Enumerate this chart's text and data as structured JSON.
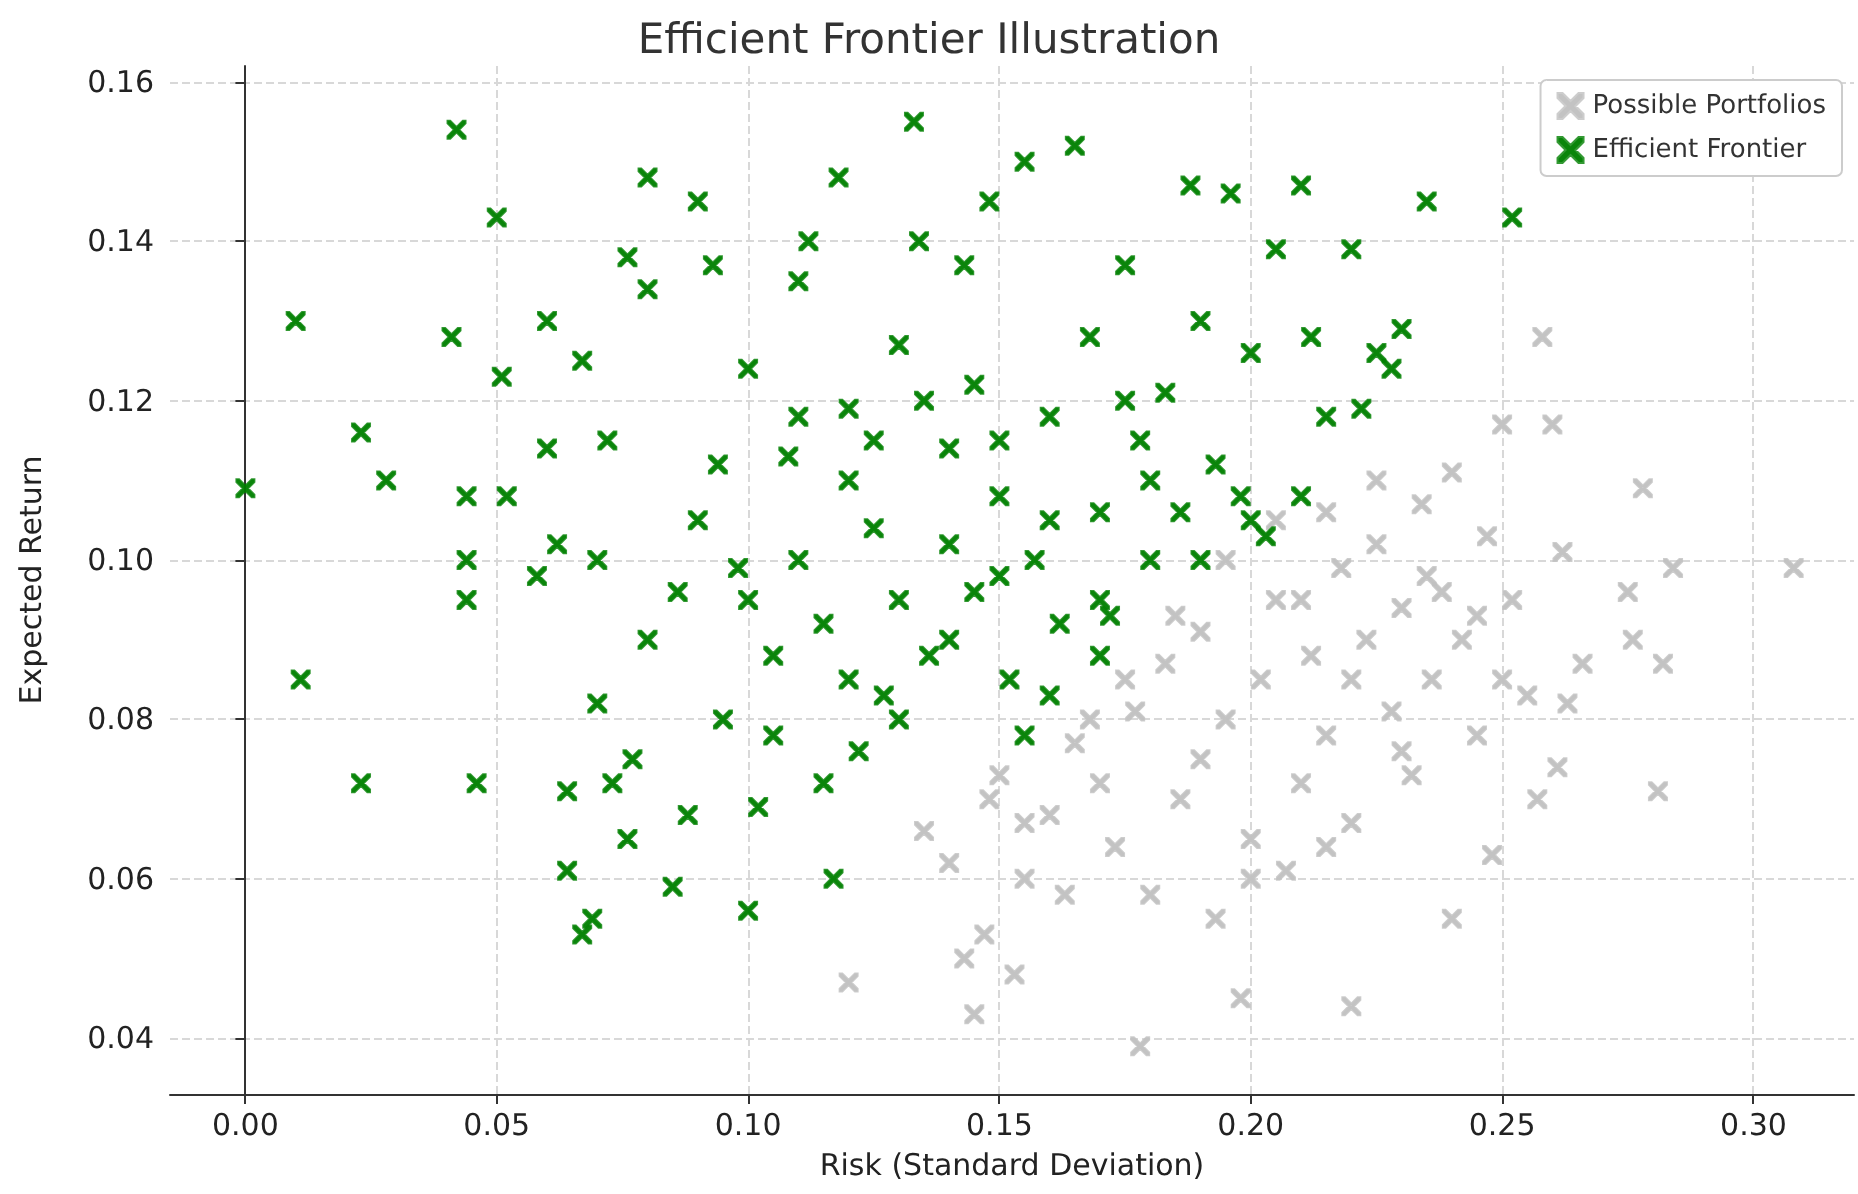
{
  "chart_data": {
    "type": "scatter",
    "title": "Efficient Frontier Illustration",
    "xlabel": "Risk (Standard Deviation)",
    "ylabel": "Expected Return",
    "xlim": [
      -0.015,
      0.32
    ],
    "xticks": [
      {
        "value": 0,
        "label": "0.00"
      },
      0.05,
      {
        "value": 0.1,
        "label": "0.10"
      },
      0.15,
      {
        "value": 0.2,
        "label": "0.20"
      },
      0.25,
      {
        "value": 0.3,
        "label": "0.30"
      }
    ],
    "ylim": [
      0.033,
      0.162
    ],
    "yticks": [
      0.04,
      0.06,
      0.08,
      {
        "value": 0.1,
        "label": "0.10"
      },
      0.12,
      0.14,
      0.16
    ],
    "grid": true,
    "legend": "top right",
    "marker": "cross",
    "series": [
      {
        "name": "Possible Portfolios",
        "color": "#c0c0c0",
        "x": [
          0.12,
          0.135,
          0.14,
          0.143,
          0.145,
          0.147,
          0.15,
          0.153,
          0.155,
          0.16,
          0.163,
          0.165,
          0.17,
          0.173,
          0.177,
          0.178,
          0.18,
          0.183,
          0.186,
          0.19,
          0.193,
          0.195,
          0.198,
          0.2,
          0.202,
          0.205,
          0.207,
          0.21,
          0.212,
          0.215,
          0.218,
          0.22,
          0.22,
          0.223,
          0.225,
          0.228,
          0.23,
          0.232,
          0.234,
          0.236,
          0.238,
          0.24,
          0.24,
          0.242,
          0.245,
          0.247,
          0.248,
          0.25,
          0.252,
          0.255,
          0.257,
          0.258,
          0.26,
          0.261,
          0.262,
          0.263,
          0.266,
          0.275,
          0.276,
          0.278,
          0.281,
          0.282,
          0.284,
          0.308,
          0.185,
          0.195,
          0.205,
          0.215,
          0.175,
          0.168,
          0.19,
          0.2,
          0.21,
          0.225,
          0.235,
          0.245,
          0.25,
          0.23,
          0.22,
          0.215,
          0.155,
          0.148
        ],
        "values": [
          0.047,
          0.066,
          0.062,
          0.05,
          0.043,
          0.053,
          0.073,
          0.048,
          0.06,
          0.068,
          0.058,
          0.077,
          0.072,
          0.064,
          0.081,
          0.039,
          0.058,
          0.087,
          0.07,
          0.091,
          0.055,
          0.08,
          0.045,
          0.065,
          0.085,
          0.095,
          0.061,
          0.072,
          0.088,
          0.078,
          0.099,
          0.044,
          0.067,
          0.09,
          0.102,
          0.081,
          0.094,
          0.073,
          0.107,
          0.085,
          0.096,
          0.055,
          0.111,
          0.09,
          0.078,
          0.103,
          0.063,
          0.117,
          0.095,
          0.083,
          0.07,
          0.128,
          0.117,
          0.074,
          0.101,
          0.082,
          0.087,
          0.096,
          0.09,
          0.109,
          0.071,
          0.087,
          0.099,
          0.099,
          0.093,
          0.1,
          0.105,
          0.106,
          0.085,
          0.08,
          0.075,
          0.06,
          0.095,
          0.11,
          0.098,
          0.093,
          0.085,
          0.076,
          0.085,
          0.064,
          0.067,
          0.07
        ]
      },
      {
        "name": "Efficient Frontier",
        "color": "#008000",
        "x": [
          0.0,
          0.01,
          0.011,
          0.023,
          0.023,
          0.028,
          0.042,
          0.041,
          0.044,
          0.044,
          0.046,
          0.044,
          0.05,
          0.051,
          0.052,
          0.058,
          0.06,
          0.06,
          0.062,
          0.064,
          0.064,
          0.067,
          0.067,
          0.069,
          0.07,
          0.072,
          0.073,
          0.076,
          0.076,
          0.08,
          0.08,
          0.077,
          0.085,
          0.086,
          0.088,
          0.09,
          0.093,
          0.094,
          0.098,
          0.1,
          0.1,
          0.102,
          0.105,
          0.108,
          0.11,
          0.112,
          0.115,
          0.117,
          0.118,
          0.12,
          0.122,
          0.125,
          0.127,
          0.13,
          0.133,
          0.134,
          0.136,
          0.14,
          0.143,
          0.145,
          0.148,
          0.15,
          0.152,
          0.155,
          0.157,
          0.16,
          0.162,
          0.165,
          0.168,
          0.17,
          0.172,
          0.175,
          0.178,
          0.18,
          0.183,
          0.186,
          0.188,
          0.19,
          0.193,
          0.196,
          0.198,
          0.2,
          0.203,
          0.205,
          0.21,
          0.212,
          0.215,
          0.22,
          0.222,
          0.225,
          0.228,
          0.23,
          0.235,
          0.252,
          0.1,
          0.11,
          0.12,
          0.13,
          0.14,
          0.15,
          0.16,
          0.17,
          0.18,
          0.19,
          0.2,
          0.21,
          0.09,
          0.08,
          0.07,
          0.12,
          0.13,
          0.14,
          0.15,
          0.16,
          0.17,
          0.105,
          0.095,
          0.115,
          0.135,
          0.125,
          0.11,
          0.145,
          0.155,
          0.175
        ],
        "values": [
          0.109,
          0.13,
          0.085,
          0.116,
          0.072,
          0.11,
          0.154,
          0.128,
          0.1,
          0.095,
          0.072,
          0.108,
          0.143,
          0.123,
          0.108,
          0.098,
          0.13,
          0.114,
          0.102,
          0.071,
          0.061,
          0.125,
          0.053,
          0.055,
          0.082,
          0.115,
          0.072,
          0.065,
          0.138,
          0.148,
          0.134,
          0.075,
          0.059,
          0.096,
          0.068,
          0.145,
          0.137,
          0.112,
          0.099,
          0.056,
          0.124,
          0.069,
          0.088,
          0.113,
          0.135,
          0.14,
          0.092,
          0.06,
          0.148,
          0.119,
          0.076,
          0.104,
          0.083,
          0.127,
          0.155,
          0.14,
          0.088,
          0.114,
          0.137,
          0.096,
          0.145,
          0.108,
          0.085,
          0.15,
          0.1,
          0.118,
          0.092,
          0.152,
          0.128,
          0.106,
          0.093,
          0.137,
          0.115,
          0.1,
          0.121,
          0.106,
          0.147,
          0.13,
          0.112,
          0.146,
          0.108,
          0.126,
          0.103,
          0.139,
          0.147,
          0.128,
          0.118,
          0.139,
          0.119,
          0.126,
          0.124,
          0.129,
          0.145,
          0.143,
          0.095,
          0.1,
          0.11,
          0.095,
          0.102,
          0.098,
          0.105,
          0.095,
          0.11,
          0.1,
          0.105,
          0.108,
          0.105,
          0.09,
          0.1,
          0.085,
          0.08,
          0.09,
          0.115,
          0.083,
          0.088,
          0.078,
          0.08,
          0.072,
          0.12,
          0.115,
          0.118,
          0.122,
          0.078,
          0.12
        ]
      }
    ]
  }
}
